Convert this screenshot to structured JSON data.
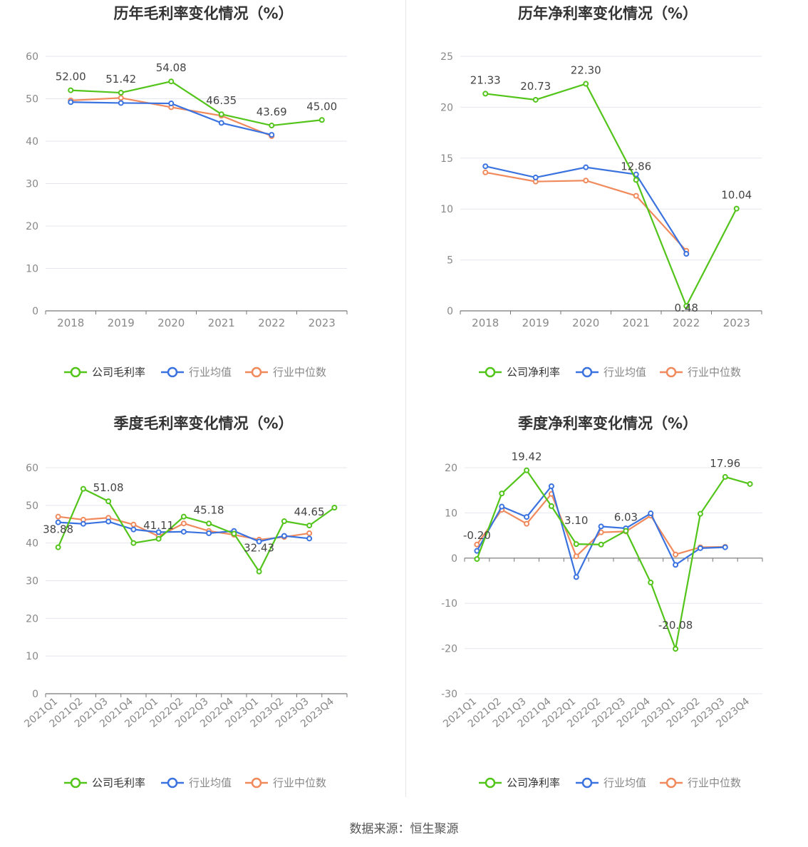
{
  "source_label": "数据来源：恒生聚源",
  "colors": {
    "company": "#52c41a",
    "average": "#3a73e0",
    "median": "#f08a5d",
    "grid": "#e5e7ef",
    "axis": "#666666"
  },
  "chart_data": [
    {
      "type": "line",
      "title": "历年毛利率变化情况（%）",
      "categories": [
        "2018",
        "2019",
        "2020",
        "2021",
        "2022",
        "2023"
      ],
      "ylim": [
        0,
        60
      ],
      "yticks": [
        0,
        10,
        20,
        30,
        40,
        50,
        60
      ],
      "legend": [
        "公司毛利率",
        "行业均值",
        "行业中位数"
      ],
      "series": [
        {
          "name": "公司毛利率",
          "values": [
            52.0,
            51.42,
            54.08,
            46.35,
            43.69,
            45.0
          ]
        },
        {
          "name": "行业均值",
          "values": [
            49.2,
            49.0,
            48.9,
            44.3,
            41.5,
            null
          ]
        },
        {
          "name": "行业中位数",
          "values": [
            49.6,
            50.2,
            48.0,
            46.0,
            41.2,
            null
          ]
        }
      ],
      "data_labels": [
        "52.00",
        "51.42",
        "54.08",
        "46.35",
        "43.69",
        "45.00"
      ]
    },
    {
      "type": "line",
      "title": "历年净利率变化情况（%）",
      "categories": [
        "2018",
        "2019",
        "2020",
        "2021",
        "2022",
        "2023"
      ],
      "ylim": [
        0,
        25
      ],
      "yticks": [
        0,
        5,
        10,
        15,
        20,
        25
      ],
      "legend": [
        "公司净利率",
        "行业均值",
        "行业中位数"
      ],
      "series": [
        {
          "name": "公司净利率",
          "values": [
            21.33,
            20.73,
            22.3,
            12.86,
            0.48,
            10.04
          ]
        },
        {
          "name": "行业均值",
          "values": [
            14.2,
            13.1,
            14.1,
            13.4,
            5.6,
            null
          ]
        },
        {
          "name": "行业中位数",
          "values": [
            13.6,
            12.7,
            12.8,
            11.3,
            5.9,
            null
          ]
        }
      ],
      "data_labels": [
        "21.33",
        "20.73",
        "22.30",
        "12.86",
        "0.48",
        "10.04"
      ]
    },
    {
      "type": "line",
      "title": "季度毛利率变化情况（%）",
      "categories": [
        "2021Q1",
        "2021Q2",
        "2021Q3",
        "2021Q4",
        "2022Q1",
        "2022Q2",
        "2022Q3",
        "2022Q4",
        "2023Q1",
        "2023Q2",
        "2023Q3",
        "2023Q4"
      ],
      "ylim": [
        0,
        60
      ],
      "yticks": [
        0,
        10,
        20,
        30,
        40,
        50,
        60
      ],
      "legend": [
        "公司毛利率",
        "行业均值",
        "行业中位数"
      ],
      "series": [
        {
          "name": "公司毛利率",
          "values": [
            38.88,
            54.4,
            51.08,
            40.0,
            41.11,
            47.0,
            45.18,
            42.5,
            32.43,
            45.8,
            44.65,
            49.4
          ]
        },
        {
          "name": "行业均值",
          "values": [
            45.5,
            45.1,
            45.7,
            43.6,
            42.9,
            43.0,
            42.6,
            43.2,
            40.4,
            41.9,
            41.2,
            null
          ]
        },
        {
          "name": "行业中位数",
          "values": [
            47.0,
            46.2,
            46.7,
            44.9,
            41.8,
            45.2,
            43.2,
            42.2,
            40.9,
            41.6,
            42.6,
            null
          ]
        }
      ],
      "data_labels": [
        "38.88",
        "",
        "51.08",
        "",
        "41.11",
        "",
        "45.18",
        "",
        "32.43",
        "",
        "44.65",
        ""
      ]
    },
    {
      "type": "line",
      "title": "季度净利率变化情况（%）",
      "categories": [
        "2021Q1",
        "2021Q2",
        "2021Q3",
        "2021Q4",
        "2022Q1",
        "2022Q2",
        "2022Q3",
        "2022Q4",
        "2023Q1",
        "2023Q2",
        "2023Q3",
        "2023Q4"
      ],
      "ylim": [
        -30,
        20
      ],
      "yticks": [
        -30,
        -20,
        -10,
        0,
        10,
        20
      ],
      "legend": [
        "公司净利率",
        "行业均值",
        "行业中位数"
      ],
      "series": [
        {
          "name": "公司净利率",
          "values": [
            -0.2,
            14.3,
            19.42,
            11.5,
            3.1,
            3.0,
            6.03,
            -5.4,
            -20.08,
            9.8,
            17.96,
            16.4
          ]
        },
        {
          "name": "行业均值",
          "values": [
            1.6,
            11.4,
            9.1,
            15.9,
            -4.2,
            7.0,
            6.6,
            9.9,
            -1.5,
            2.2,
            2.4,
            null
          ]
        },
        {
          "name": "行业中位数",
          "values": [
            3.0,
            10.7,
            7.6,
            14.2,
            0.4,
            5.7,
            5.9,
            9.4,
            0.8,
            2.4,
            2.5,
            null
          ]
        }
      ],
      "data_labels": [
        "-0.20",
        "",
        "19.42",
        "",
        "3.10",
        "",
        "6.03",
        "",
        "-20.08",
        "",
        "17.96",
        ""
      ]
    }
  ]
}
